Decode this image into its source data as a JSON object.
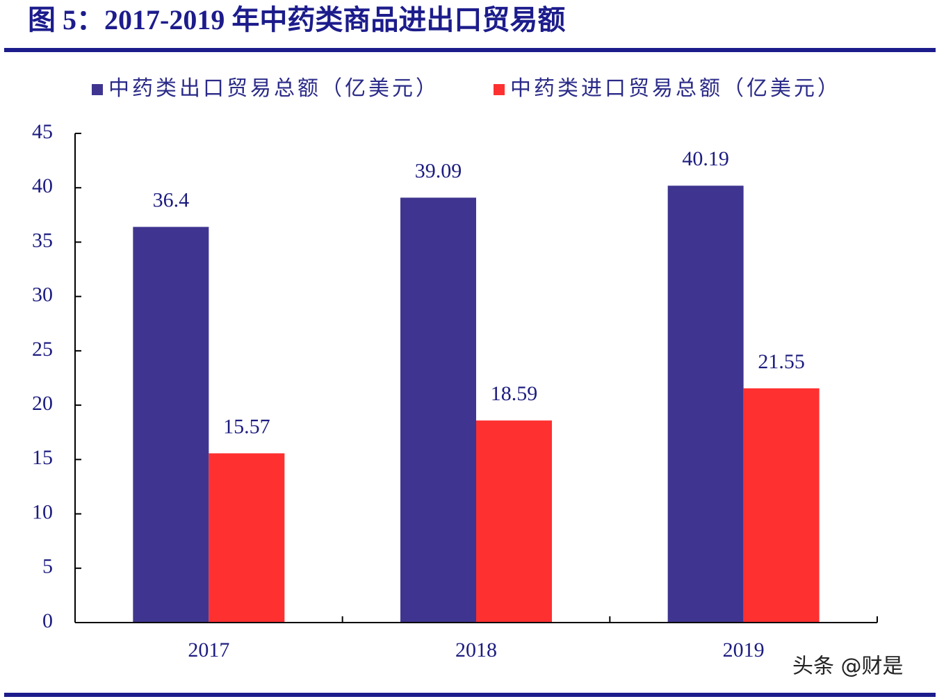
{
  "chart_data": {
    "type": "bar",
    "title": "图 5：2017-2019 年中药类商品进出口贸易额",
    "categories": [
      "2017",
      "2018",
      "2019"
    ],
    "series": [
      {
        "name": "中药类出口贸易总额（亿美元）",
        "color": "#3f3590",
        "values": [
          36.4,
          39.09,
          40.19
        ]
      },
      {
        "name": "中药类进口贸易总额（亿美元）",
        "color": "#ff3030",
        "values": [
          15.57,
          18.59,
          21.55
        ]
      }
    ],
    "ylim": [
      0,
      45
    ],
    "yticks": [
      0,
      5,
      10,
      15,
      20,
      25,
      30,
      35,
      40,
      45
    ],
    "legend": "top",
    "watermark": "头条 @财是"
  }
}
